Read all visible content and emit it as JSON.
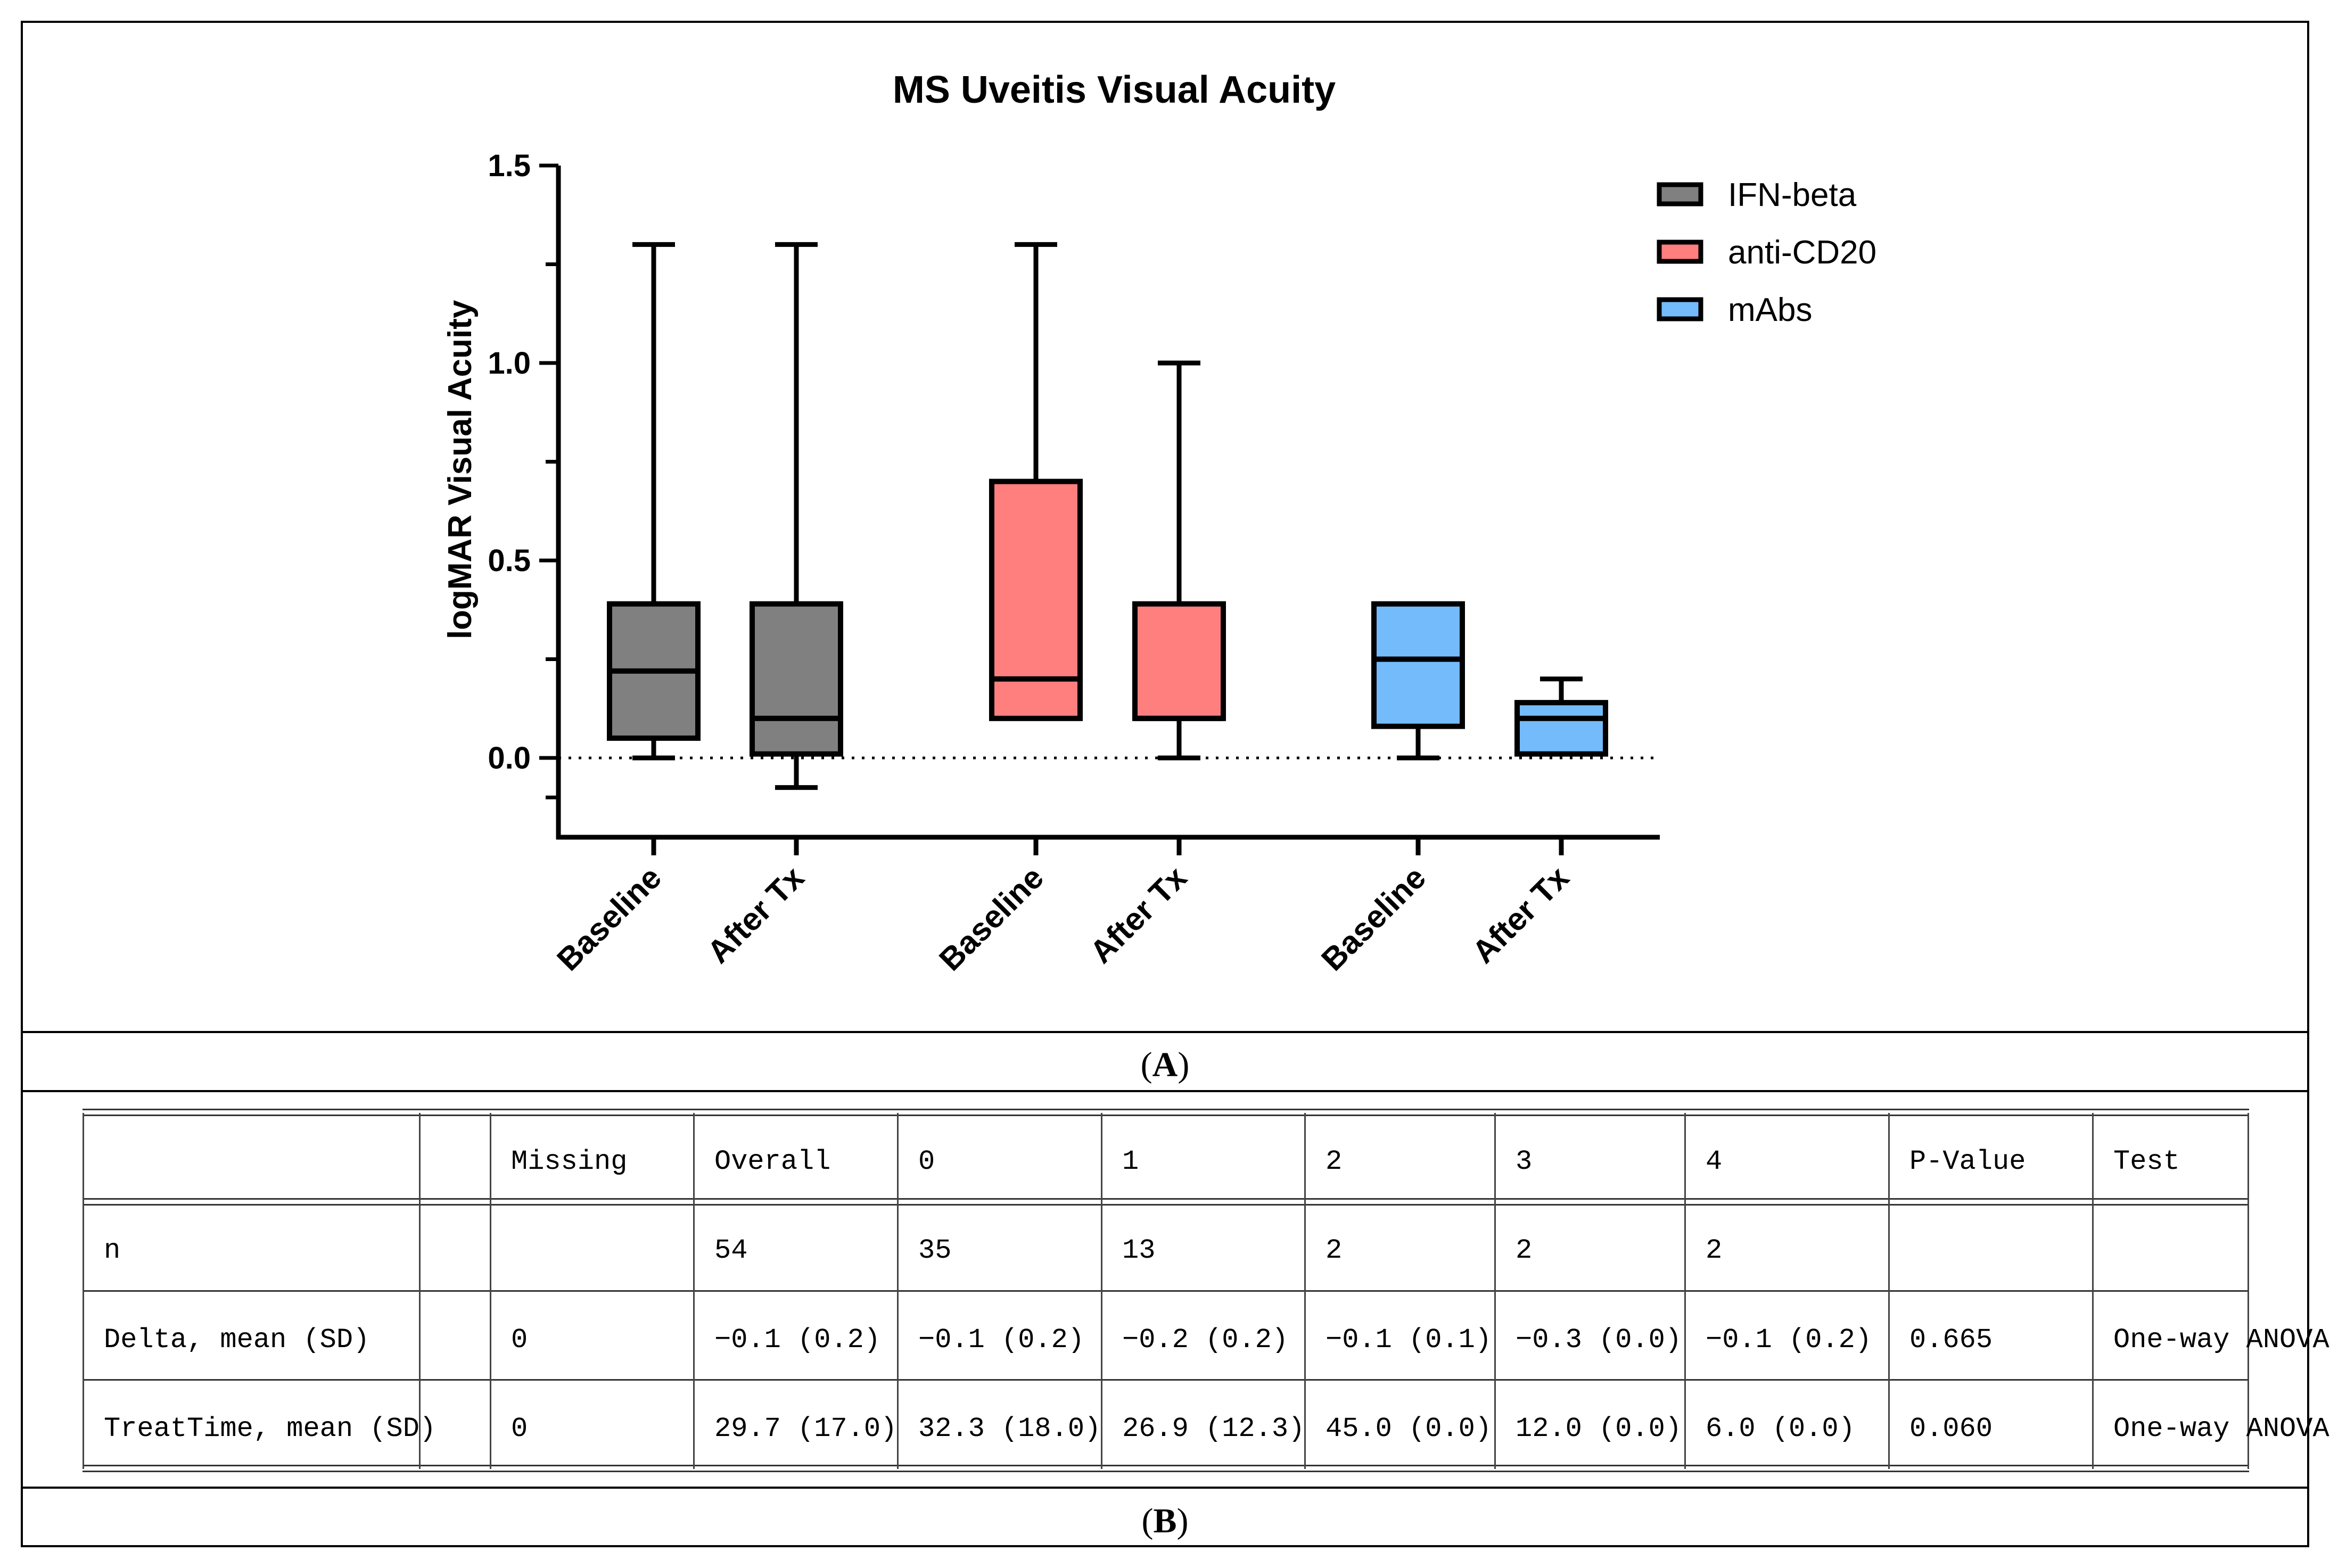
{
  "panel_a": {
    "caption_open": "(",
    "caption_letter": "A",
    "caption_close": ")"
  },
  "panel_b": {
    "caption_open": "(",
    "caption_letter": "B",
    "caption_close": ")"
  },
  "chart_data": {
    "type": "box",
    "title": "MS Uveitis Visual Acuity",
    "xlabel": "",
    "ylabel": "logMAR Visual Acuity",
    "ylim": [
      -0.2,
      1.5
    ],
    "yticks": [
      0.0,
      0.5,
      1.0,
      1.5
    ],
    "ytick_labels": [
      "0.0",
      "0.5",
      "1.0",
      "1.5"
    ],
    "reference_line": {
      "y": 0.0,
      "style": "dotted"
    },
    "legend": {
      "position": "top-right",
      "entries": [
        {
          "label": "IFN-beta",
          "color": "#808080"
        },
        {
          "label": "anti-CD20",
          "color": "#FF7F7F"
        },
        {
          "label": "mAbs",
          "color": "#74BBFB"
        }
      ]
    },
    "series": [
      {
        "name": "IFN-beta",
        "color": "#808080",
        "boxes": [
          {
            "category": "Baseline",
            "min": 0.0,
            "q1": 0.05,
            "median": 0.22,
            "q3": 0.39,
            "max": 1.3
          },
          {
            "category": "After Tx",
            "min": -0.075,
            "q1": 0.01,
            "median": 0.1,
            "q3": 0.39,
            "max": 1.3
          }
        ]
      },
      {
        "name": "anti-CD20",
        "color": "#FF7F7F",
        "boxes": [
          {
            "category": "Baseline",
            "min": 0.1,
            "q1": 0.1,
            "median": 0.2,
            "q3": 0.7,
            "max": 1.3
          },
          {
            "category": "After Tx",
            "min": 0.0,
            "q1": 0.1,
            "median": 0.1,
            "q3": 0.39,
            "max": 1.0
          }
        ]
      },
      {
        "name": "mAbs",
        "color": "#74BBFB",
        "boxes": [
          {
            "category": "Baseline",
            "min": 0.0,
            "q1": 0.08,
            "median": 0.25,
            "q3": 0.39,
            "max": 0.39
          },
          {
            "category": "After Tx",
            "min": 0.01,
            "q1": 0.01,
            "median": 0.1,
            "q3": 0.14,
            "max": 0.2
          }
        ]
      }
    ]
  },
  "table": {
    "headers": [
      "",
      "",
      "Missing",
      "Overall",
      "0",
      "1",
      "2",
      "3",
      "4",
      "P-Value",
      "Test"
    ],
    "rows": [
      [
        "n",
        "",
        "",
        "54",
        "35",
        "13",
        "2",
        "2",
        "2",
        "",
        ""
      ],
      [
        "Delta, mean (SD)",
        "",
        "0",
        "−0.1 (0.2)",
        "−0.1 (0.2)",
        "−0.2 (0.2)",
        "−0.1 (0.1)",
        "−0.3 (0.0)",
        "−0.1 (0.2)",
        "0.665",
        "One-way ANOVA"
      ],
      [
        "TreatTime, mean (SD)",
        "",
        "0",
        "29.7 (17.0)",
        "32.3 (18.0)",
        "26.9 (12.3)",
        "45.0 (0.0)",
        "12.0 (0.0)",
        "6.0 (0.0)",
        "0.060",
        "One-way ANOVA"
      ]
    ]
  }
}
